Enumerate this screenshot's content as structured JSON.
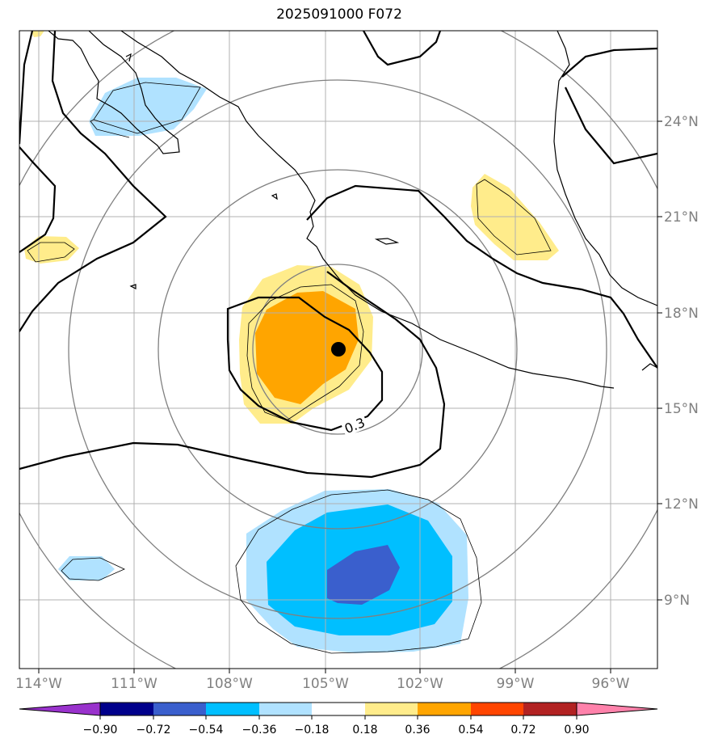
{
  "title": "2025091000 F072",
  "map": {
    "lon_labels": [
      "114°W",
      "111°W",
      "108°W",
      "105°W",
      "102°W",
      "99°W",
      "96°W"
    ],
    "lat_labels": [
      "24°N",
      "21°N",
      "18°N",
      "15°N",
      "12°N",
      "9°N"
    ],
    "contour_label": "0.3",
    "storm_center": {
      "lon": "104.5°W",
      "lat": "16.8°N"
    }
  },
  "colorbar": {
    "ticks": [
      "−0.90",
      "−0.72",
      "−0.54",
      "−0.36",
      "−0.18",
      "0.18",
      "0.36",
      "0.54",
      "0.72",
      "0.90"
    ],
    "colors": [
      "#9932cc",
      "#00008b",
      "#3a5fcd",
      "#00bfff",
      "#b0e2ff",
      "#ffffff",
      "#ffec8b",
      "#ffa500",
      "#ff4500",
      "#b22222",
      "#ff82ab"
    ]
  },
  "fill_colors": {
    "light_yellow": "#ffec8b",
    "orange": "#ffa500",
    "light_blue": "#b0e2ff",
    "deep_sky_blue": "#00bfff",
    "royal_blue": "#3a5fcd"
  }
}
